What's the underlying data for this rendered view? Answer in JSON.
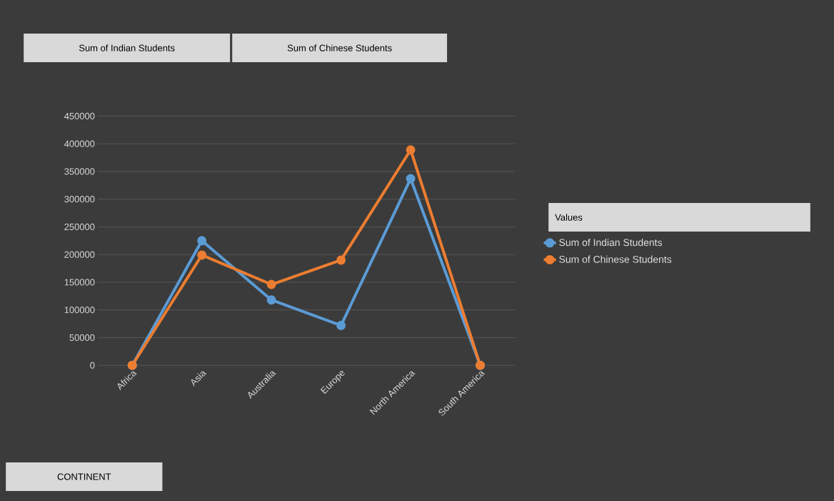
{
  "chart_data": {
    "type": "line",
    "categories": [
      "Africa",
      "Asia",
      "Australia",
      "Europe",
      "North America",
      "South America"
    ],
    "series": [
      {
        "name": "Sum of Indian Students",
        "color": "#5b9bd5",
        "values": [
          0,
          225000,
          118000,
          72000,
          337000,
          0
        ]
      },
      {
        "name": "Sum of Chinese Students",
        "color": "#ed7d31",
        "values": [
          0,
          199000,
          146000,
          190000,
          389000,
          0
        ]
      }
    ],
    "ylim": [
      0,
      450000
    ],
    "yticks": [
      0,
      50000,
      100000,
      150000,
      200000,
      250000,
      300000,
      350000,
      400000,
      450000
    ],
    "grid": "y",
    "legend": "right",
    "legend_title": "Values",
    "marker": "circle",
    "line_style": "solid",
    "annotations": [
      "Sum of Indian Students",
      "Sum of Chinese Students",
      "CONTINENT"
    ]
  }
}
